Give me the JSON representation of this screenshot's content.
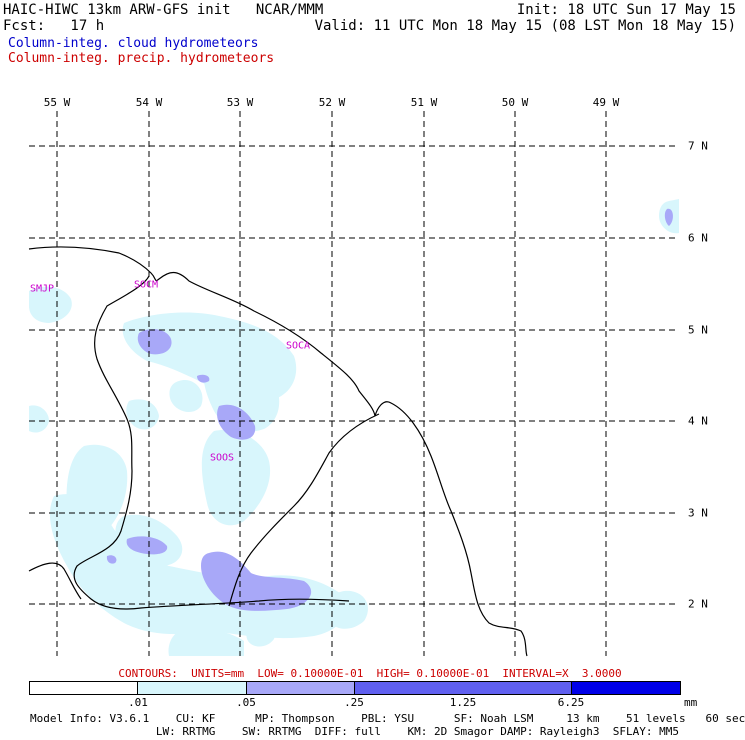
{
  "header": {
    "title_left": "HAIC-HIWC 13km ARW-GFS init   NCAR/MMM",
    "init_right": "Init: 18 UTC Sun 17 May 15",
    "fcst_left": "Fcst:   17 h",
    "valid_right": "Valid: 11 UTC Mon 18 May 15 (08 LST Mon 18 May 15)",
    "legend_cloud": "Column-integ. cloud hydrometeors",
    "legend_precip": "Column-integ. precip. hydrometeors"
  },
  "colors": {
    "cloud_legend": "#0000cc",
    "precip_legend": "#cc0000",
    "level1": "#d8f6fc",
    "level2": "#a8a8f8",
    "level3": "#6060f0",
    "level4": "#0000e8",
    "station": "#cc00cc",
    "contour_text": "#cc0000"
  },
  "map": {
    "longitude_labels": [
      "55 W",
      "54 W",
      "53 W",
      "52 W",
      "51 W",
      "50 W",
      "49 W"
    ],
    "latitude_labels": [
      "7 N",
      "6 N",
      "5 N",
      "4 N",
      "3 N",
      "2 N"
    ],
    "stations": [
      "SMJP",
      "SOCM",
      "SOCA",
      "SOOS"
    ]
  },
  "contours_text": "CONTOURS:  UNITS=mm  LOW= 0.10000E-01  HIGH= 0.10000E-01  INTERVAL=X  3.0000",
  "colorbar": {
    "labels": [
      ".01",
      ".05",
      ".25",
      "1.25",
      "6.25"
    ],
    "unit": "mm"
  },
  "model_info": {
    "line1": "Model Info: V3.6.1    CU: KF      MP: Thompson    PBL: YSU      SF: Noah LSM     13 km    51 levels   60 sec",
    "line2": "                   LW: RRTMG    SW: RRTMG  DIFF: full    KM: 2D Smagor DAMP: Rayleigh3  SFLAY: MM5"
  }
}
